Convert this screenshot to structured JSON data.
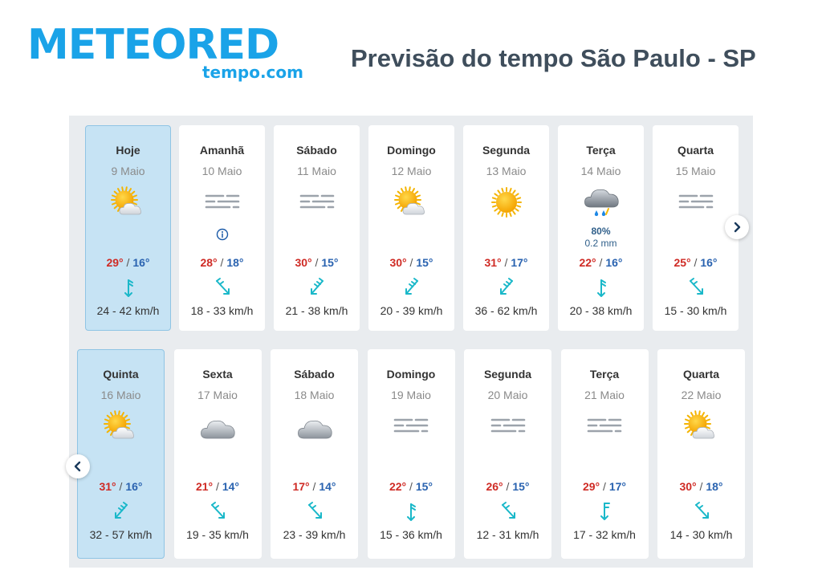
{
  "logo": {
    "brand": "METEORED",
    "sub": "tempo.com"
  },
  "title": "Previsão do tempo São Paulo - SP",
  "colors": {
    "brand": "#1aa3e8",
    "max": "#cf2b25",
    "min": "#2a63b0",
    "wind": "#1ab8c9",
    "today_bg": "#c6e3f4"
  },
  "nav": {
    "next_icon": "chevron-right-icon",
    "prev_icon": "chevron-left-icon"
  },
  "week1": [
    {
      "day": "Hoje",
      "date": "9 Maio",
      "icon": "sun-cloud",
      "max": "29°",
      "min": "16°",
      "wind": "24 - 42 km/h",
      "wind_icon": "north",
      "today": true
    },
    {
      "day": "Amanhã",
      "date": "10 Maio",
      "icon": "fog",
      "info": true,
      "max": "28°",
      "min": "18°",
      "wind": "18 - 33 km/h",
      "wind_icon": "nw"
    },
    {
      "day": "Sábado",
      "date": "11 Maio",
      "icon": "fog",
      "max": "30°",
      "min": "15°",
      "wind": "21 - 38 km/h",
      "wind_icon": "ne"
    },
    {
      "day": "Domingo",
      "date": "12 Maio",
      "icon": "sun-cloud",
      "max": "30°",
      "min": "15°",
      "wind": "20 - 39 km/h",
      "wind_icon": "ne"
    },
    {
      "day": "Segunda",
      "date": "13 Maio",
      "icon": "sun",
      "max": "31°",
      "min": "17°",
      "wind": "36 - 62 km/h",
      "wind_icon": "ne"
    },
    {
      "day": "Terça",
      "date": "14 Maio",
      "icon": "rain",
      "rain_pct": "80%",
      "rain_mm": "0.2 mm",
      "max": "22°",
      "min": "16°",
      "wind": "20 - 38 km/h",
      "wind_icon": "north"
    },
    {
      "day": "Quarta",
      "date": "15 Maio",
      "icon": "fog",
      "max": "25°",
      "min": "16°",
      "wind": "15 - 30 km/h",
      "wind_icon": "nw"
    }
  ],
  "week2": [
    {
      "day": "Quinta",
      "date": "16 Maio",
      "icon": "sun-cloud",
      "max": "31°",
      "min": "16°",
      "wind": "32 - 57 km/h",
      "wind_icon": "ne",
      "today": true
    },
    {
      "day": "Sexta",
      "date": "17 Maio",
      "icon": "cloud",
      "max": "21°",
      "min": "14°",
      "wind": "19 - 35 km/h",
      "wind_icon": "nw"
    },
    {
      "day": "Sábado",
      "date": "18 Maio",
      "icon": "cloud",
      "max": "17°",
      "min": "14°",
      "wind": "23 - 39 km/h",
      "wind_icon": "nw"
    },
    {
      "day": "Domingo",
      "date": "19 Maio",
      "icon": "fog",
      "max": "22°",
      "min": "15°",
      "wind": "15 - 36 km/h",
      "wind_icon": "north"
    },
    {
      "day": "Segunda",
      "date": "20 Maio",
      "icon": "fog",
      "max": "26°",
      "min": "15°",
      "wind": "12 - 31 km/h",
      "wind_icon": "nw"
    },
    {
      "day": "Terça",
      "date": "21 Maio",
      "icon": "fog",
      "max": "29°",
      "min": "17°",
      "wind": "17 - 32 km/h",
      "wind_icon": "south"
    },
    {
      "day": "Quarta",
      "date": "22 Maio",
      "icon": "sun-cloud",
      "max": "30°",
      "min": "18°",
      "wind": "14 - 30 km/h",
      "wind_icon": "nw"
    }
  ]
}
